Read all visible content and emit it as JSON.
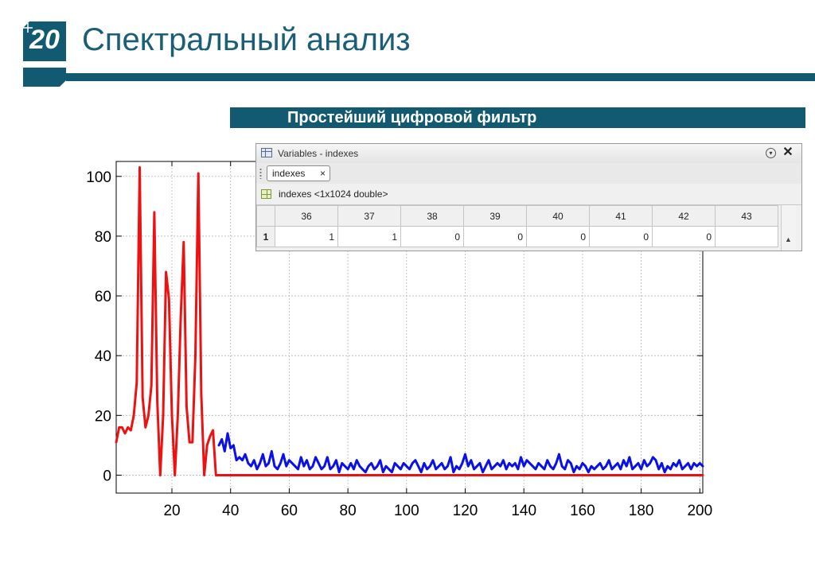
{
  "slide": {
    "number": "20",
    "title": "Спектральный анализ",
    "subtitle": "Простейший цифровой фильтр"
  },
  "colors": {
    "brand": "#125a72",
    "title": "#1b5e77",
    "series_original": "#0a10e8",
    "series_filtered": "#ee1111"
  },
  "variables_window": {
    "title": "Variables - indexes",
    "tab_label": "indexes",
    "tab_close": "×",
    "close_glyph": "✕",
    "menu_glyph": "▾",
    "info": "indexes <1x1024 double>",
    "columns": [
      "36",
      "37",
      "38",
      "39",
      "40",
      "41",
      "42",
      "43"
    ],
    "rows": [
      {
        "label": "1",
        "cells": [
          "1",
          "1",
          "0",
          "0",
          "0",
          "0",
          "0",
          ""
        ]
      }
    ],
    "scroll_glyph": "▲"
  },
  "chart_data": {
    "type": "line",
    "xlim": [
      1,
      201
    ],
    "ylim": [
      -6,
      105
    ],
    "x_ticks": [
      20,
      40,
      60,
      80,
      100,
      120,
      140,
      160,
      180,
      200
    ],
    "y_ticks": [
      0,
      20,
      40,
      60,
      80,
      100
    ],
    "grid": true,
    "series": [
      {
        "color": "#0a10e8",
        "x": [
          36,
          37,
          38,
          39,
          40,
          41,
          42,
          43,
          44,
          45,
          46,
          47,
          48,
          49,
          50,
          51,
          52,
          53,
          54,
          55,
          56,
          57,
          58,
          59,
          60,
          61,
          62,
          63,
          64,
          65,
          66,
          67,
          68,
          69,
          70,
          71,
          72,
          73,
          74,
          75,
          76,
          77,
          78,
          79,
          80,
          81,
          82,
          83,
          84,
          85,
          86,
          87,
          88,
          89,
          90,
          91,
          92,
          93,
          94,
          95,
          96,
          97,
          98,
          99,
          100,
          101,
          102,
          103,
          104,
          105,
          106,
          107,
          108,
          109,
          110,
          111,
          112,
          113,
          114,
          115,
          116,
          117,
          118,
          119,
          120,
          121,
          122,
          123,
          124,
          125,
          126,
          127,
          128,
          129,
          130,
          131,
          132,
          133,
          134,
          135,
          136,
          137,
          138,
          139,
          140,
          141,
          142,
          143,
          144,
          145,
          146,
          147,
          148,
          149,
          150,
          151,
          152,
          153,
          154,
          155,
          156,
          157,
          158,
          159,
          160,
          161,
          162,
          163,
          164,
          165,
          166,
          167,
          168,
          169,
          170,
          171,
          172,
          173,
          174,
          175,
          176,
          177,
          178,
          179,
          180,
          181,
          182,
          183,
          184,
          185,
          186,
          187,
          188,
          189,
          190,
          191,
          192,
          193,
          194,
          195,
          196,
          197,
          198,
          199,
          200,
          201
        ],
        "y": [
          10,
          12,
          8,
          14,
          9,
          10,
          5,
          6,
          5,
          7,
          4,
          3,
          5,
          2,
          4,
          7,
          3,
          4,
          8,
          3,
          2,
          4,
          7,
          3,
          5,
          4,
          3,
          2,
          6,
          3,
          5,
          2,
          3,
          6,
          4,
          2,
          3,
          6,
          2,
          3,
          5,
          1,
          4,
          3,
          2,
          4,
          2,
          5,
          3,
          2,
          1,
          3,
          4,
          2,
          3,
          5,
          1,
          3,
          2,
          1,
          4,
          3,
          2,
          4,
          3,
          2,
          4,
          5,
          3,
          1,
          4,
          2,
          3,
          5,
          2,
          3,
          4,
          2,
          3,
          6,
          1,
          3,
          2,
          4,
          7,
          3,
          5,
          2,
          3,
          4,
          1,
          3,
          5,
          2,
          3,
          4,
          3,
          5,
          2,
          4,
          3,
          4,
          2,
          6,
          3,
          5,
          4,
          3,
          2,
          4,
          3,
          2,
          5,
          3,
          2,
          4,
          7,
          3,
          2,
          5,
          4,
          1,
          3,
          2,
          4,
          3,
          1,
          3,
          2,
          3,
          4,
          2,
          3,
          5,
          2,
          3,
          4,
          2,
          5,
          3,
          6,
          2,
          3,
          4,
          2,
          5,
          3,
          4,
          6,
          5,
          2,
          4,
          1,
          3,
          2,
          4,
          3,
          5,
          2,
          3,
          4,
          2,
          4,
          3,
          4,
          3
        ]
      },
      {
        "color": "#ee1111",
        "x": [
          1,
          2,
          3,
          4,
          5,
          6,
          7,
          8,
          9,
          10,
          11,
          12,
          13,
          14,
          15,
          16,
          17,
          18,
          19,
          20,
          21,
          22,
          23,
          24,
          25,
          26,
          27,
          28,
          29,
          30,
          31,
          32,
          33,
          34,
          35,
          36,
          37,
          38,
          39,
          40,
          201
        ],
        "y": [
          11,
          16,
          16,
          14,
          16,
          15,
          20,
          31,
          103,
          26,
          16,
          20,
          30,
          88,
          25,
          0,
          20,
          68,
          59,
          20,
          0,
          20,
          53,
          78,
          23,
          11,
          11,
          40,
          101,
          27,
          0,
          10,
          13,
          15,
          0,
          0,
          0,
          0,
          0,
          0,
          0
        ]
      }
    ]
  }
}
